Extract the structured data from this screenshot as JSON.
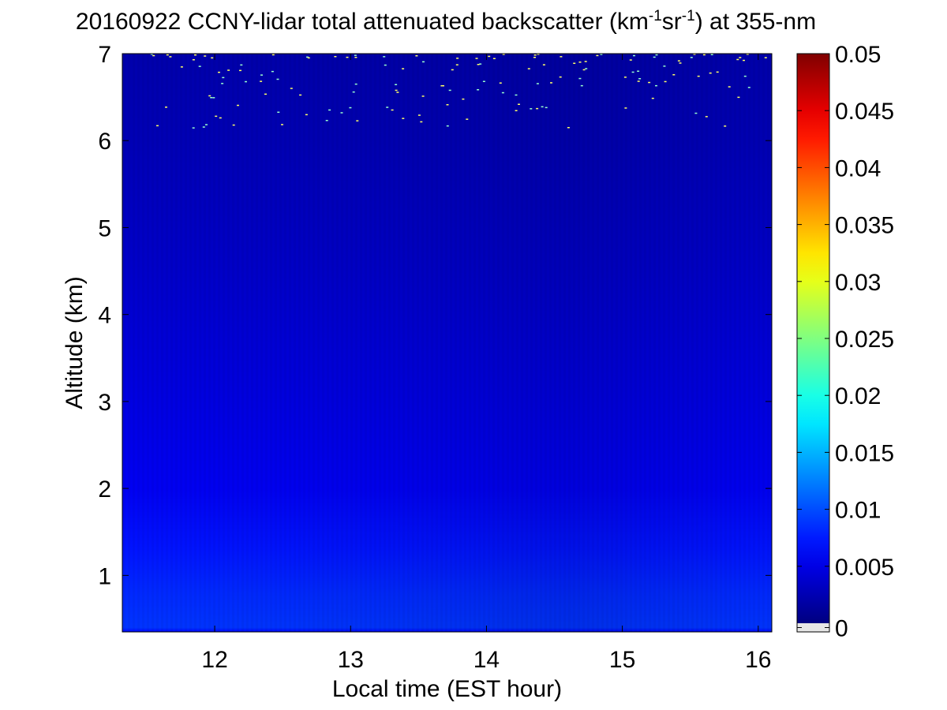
{
  "chart_data": {
    "type": "heatmap",
    "title": {
      "date": "20160922",
      "main": "CCNY-lidar total attenuated backscatter (km",
      "sup1": "-1",
      "mid": "sr",
      "sup2": "-1",
      "tail": ") at 355-nm"
    },
    "xlabel": "Local time (EST hour)",
    "ylabel": "Altitude (km)",
    "xlim": [
      11.32,
      16.1
    ],
    "ylim": [
      0.35,
      7
    ],
    "x_ticks": [
      12,
      13,
      14,
      15,
      16
    ],
    "y_ticks": [
      1,
      2,
      3,
      4,
      5,
      6,
      7
    ],
    "colorbar": {
      "colormap": "jet",
      "clim": [
        0,
        0.05
      ],
      "ticks": [
        0,
        0.005,
        0.01,
        0.015,
        0.02,
        0.025,
        0.03,
        0.035,
        0.04,
        0.045,
        0.05
      ],
      "tick_labels": [
        "0",
        "0.005",
        "0.01",
        "0.015",
        "0.02",
        "0.025",
        "0.03",
        "0.035",
        "0.04",
        "0.045",
        "0.05"
      ],
      "nan_color": "#e6e6e6"
    },
    "altitude_profile": [
      {
        "altitude": 0.35,
        "value": 0.0065
      },
      {
        "altitude": 0.4,
        "value": 0.0088
      },
      {
        "altitude": 0.8,
        "value": 0.0082
      },
      {
        "altitude": 1.3,
        "value": 0.0072
      },
      {
        "altitude": 2.0,
        "value": 0.0056
      },
      {
        "altitude": 3.0,
        "value": 0.0048
      },
      {
        "altitude": 4.5,
        "value": 0.0036
      },
      {
        "altitude": 6.0,
        "value": 0.0026
      },
      {
        "altitude": 7.0,
        "value": 0.0022
      }
    ],
    "time_profile": [
      {
        "time": 11.32,
        "factor": 1.0
      },
      {
        "time": 12.5,
        "factor": 0.98
      },
      {
        "time": 13.5,
        "factor": 0.95
      },
      {
        "time": 14.6,
        "factor": 0.9
      },
      {
        "time": 15.5,
        "factor": 0.95
      },
      {
        "time": 16.1,
        "factor": 0.98
      }
    ],
    "grid": false,
    "legend": "none"
  }
}
